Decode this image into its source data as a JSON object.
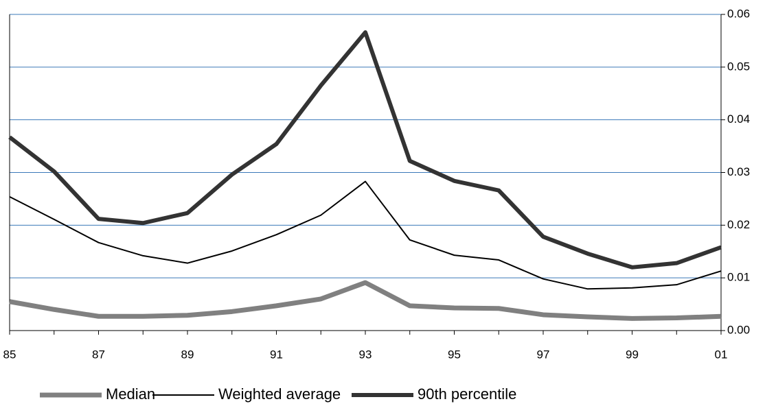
{
  "chart_data": {
    "type": "line",
    "categories": [
      "85",
      null,
      "87",
      null,
      "89",
      null,
      "91",
      null,
      "93",
      null,
      "95",
      null,
      "97",
      null,
      "99",
      null,
      "01"
    ],
    "series": [
      {
        "name": "Median",
        "color": "#808080",
        "width": 7,
        "values": [
          0.0055,
          0.004,
          0.0027,
          0.0027,
          0.0029,
          0.0036,
          0.0047,
          0.006,
          0.0091,
          0.0047,
          0.0043,
          0.0042,
          0.003,
          0.0026,
          0.0023,
          0.0024,
          0.0027
        ]
      },
      {
        "name": "Weighted average",
        "color": "#000000",
        "width": 2,
        "values": [
          0.0254,
          0.0211,
          0.0167,
          0.0142,
          0.0128,
          0.0151,
          0.0182,
          0.0219,
          0.0283,
          0.0172,
          0.0143,
          0.0134,
          0.0098,
          0.0079,
          0.0081,
          0.0087,
          0.0113
        ]
      },
      {
        "name": "90th percentile",
        "color": "#333333",
        "width": 6,
        "values": [
          0.0367,
          0.0302,
          0.0212,
          0.0204,
          0.0223,
          0.0296,
          0.0354,
          0.0465,
          0.0566,
          0.0322,
          0.0284,
          0.0266,
          0.0178,
          0.0146,
          0.012,
          0.0128,
          0.0158
        ]
      }
    ],
    "ylim": [
      0,
      0.06
    ],
    "yticks": [
      {
        "value": 0,
        "label": "0.00"
      },
      0.01,
      0.02,
      0.03,
      0.04,
      0.05,
      0.06
    ],
    "grid": true,
    "grid_color": "#3a78b8",
    "y_axis_side": "right",
    "legend": "bottom"
  }
}
